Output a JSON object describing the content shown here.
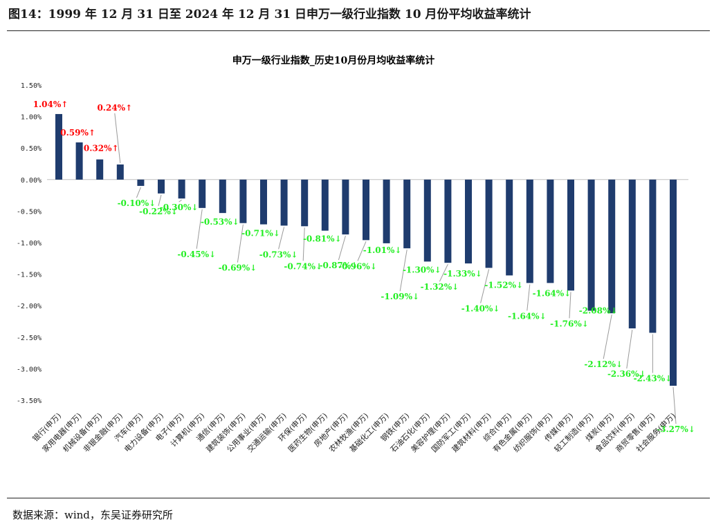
{
  "figure_title": "图14：1999 年 12 月 31 日至 2024 年 12 月 31 日申万一级行业指数 10 月份平均收益率统计",
  "source": "数据来源：wind，东吴证券研究所",
  "colors": {
    "bar": "#1f3c6e",
    "positive_label": "#ff0000",
    "negative_label": "#22ee22",
    "leader": "#999999"
  },
  "chart_data": {
    "type": "bar",
    "title": "申万一级行业指数_历史10月份月均收益率统计",
    "xlabel": "",
    "ylabel": "",
    "ylim": [
      -3.5,
      1.5
    ],
    "yticks": [
      "1.50%",
      "1.00%",
      "0.50%",
      "0.00%",
      "-0.50%",
      "-1.00%",
      "-1.50%",
      "-2.00%",
      "-2.50%",
      "-3.00%",
      "-3.50%"
    ],
    "grid": false,
    "categories": [
      "银行(申万)",
      "家用电器(申万)",
      "机械设备(申万)",
      "非银金融(申万)",
      "汽车(申万)",
      "电力设备(申万)",
      "电子(申万)",
      "计算机(申万)",
      "通信(申万)",
      "建筑装饰(申万)",
      "公用事业(申万)",
      "交通运输(申万)",
      "环保(申万)",
      "医药生物(申万)",
      "房地产(申万)",
      "农林牧渔(申万)",
      "基础化工(申万)",
      "钢铁(申万)",
      "石油石化(申万)",
      "美容护理(申万)",
      "国防军工(申万)",
      "建筑材料(申万)",
      "综合(申万)",
      "有色金属(申万)",
      "纺织服饰(申万)",
      "传媒(申万)",
      "轻工制造(申万)",
      "煤炭(申万)",
      "食品饮料(申万)",
      "商贸零售(申万)",
      "社会服务(申万)"
    ],
    "values": [
      1.04,
      0.59,
      0.32,
      0.24,
      -0.1,
      -0.22,
      -0.3,
      -0.45,
      -0.53,
      -0.69,
      -0.71,
      -0.73,
      -0.74,
      -0.81,
      -0.87,
      -0.96,
      -1.01,
      -1.09,
      -1.3,
      -1.32,
      -1.33,
      -1.4,
      -1.52,
      -1.64,
      -1.64,
      -1.76,
      -2.08,
      -2.12,
      -2.36,
      -2.43,
      -3.27
    ],
    "data_labels": [
      "1.04%↑",
      "0.59%↑",
      "0.32%↑",
      "0.24%↑",
      "-0.10%↓",
      "-0.22%↓",
      "-0.30%↓",
      "-0.45%↓",
      "-0.53%↓",
      "-0.69%↓",
      "-0.71%↓",
      "-0.73%↓",
      "-0.74%↓",
      "-0.81%↓",
      "-0.87%↓",
      "-0.96%↓",
      "-1.01%↓",
      "-1.09%↓",
      "-1.30%↓",
      "-1.32%↓",
      "-1.33%↓",
      "-1.40%↓",
      "-1.52%↓",
      "-1.64%↓",
      "-1.64%↓",
      "-1.76%↓",
      "-2.08%↓",
      "-2.12%↓",
      "-2.36%↓",
      "-2.43%↓",
      "-3.27%↓"
    ]
  }
}
